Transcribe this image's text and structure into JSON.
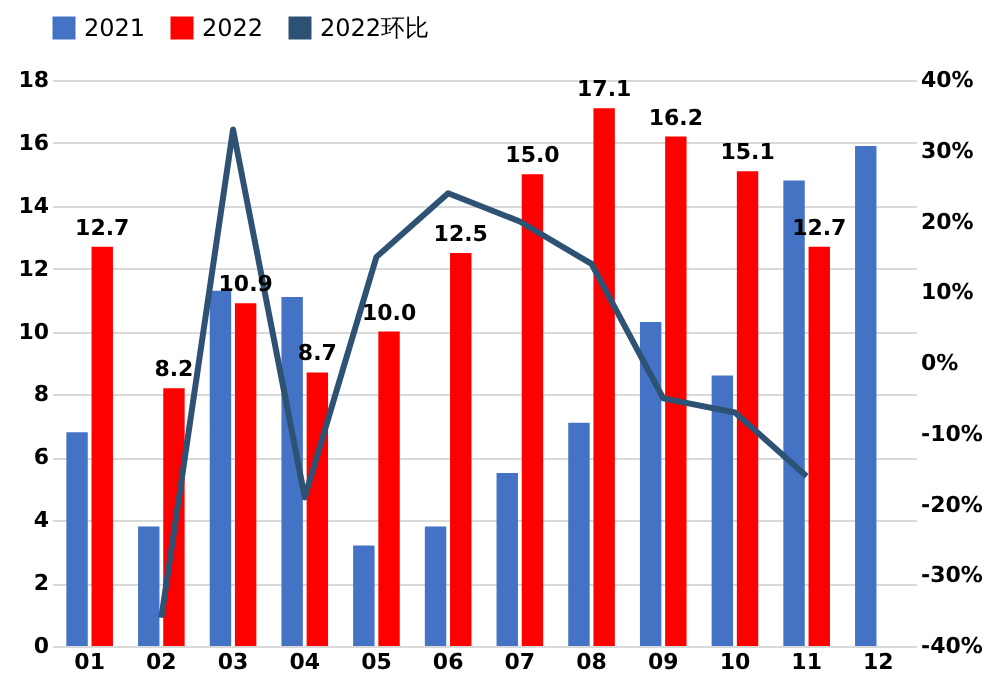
{
  "chart_data": {
    "type": "bar",
    "categories": [
      "01",
      "02",
      "03",
      "04",
      "05",
      "06",
      "07",
      "08",
      "09",
      "10",
      "11",
      "12"
    ],
    "series": [
      {
        "name": "2021",
        "color": "#4472c4",
        "values": [
          6.8,
          3.8,
          11.3,
          11.1,
          3.2,
          3.8,
          5.5,
          7.1,
          10.3,
          8.6,
          14.8,
          15.9
        ]
      },
      {
        "name": "2022",
        "color": "#ff0000",
        "values": [
          12.7,
          8.2,
          10.9,
          8.7,
          10.0,
          12.5,
          15.0,
          17.1,
          16.2,
          15.1,
          12.7,
          null
        ],
        "value_labels": [
          "12.7",
          "8.2",
          "10.9",
          "8.7",
          "10.0",
          "12.5",
          "15.0",
          "17.1",
          "16.2",
          "15.1",
          "12.7",
          null
        ]
      },
      {
        "name": "2022环比",
        "color": "#2e5274",
        "type": "line",
        "axis": "y2",
        "values": [
          null,
          -36,
          33,
          -19,
          15,
          24,
          20,
          14,
          -5,
          -7,
          -16,
          null
        ]
      }
    ],
    "ylim": [
      0,
      18
    ],
    "yticks": [
      0,
      2,
      4,
      6,
      8,
      10,
      12,
      14,
      16,
      18
    ],
    "y2lim": [
      -40,
      40
    ],
    "y2ticks": [
      {
        "value": -40,
        "label": "-40%"
      },
      {
        "value": -30,
        "label": "-30%"
      },
      {
        "value": -20,
        "label": "-20%"
      },
      {
        "value": -10,
        "label": "-10%"
      },
      {
        "value": 0,
        "label": "0%"
      },
      {
        "value": 10,
        "label": "10%"
      },
      {
        "value": 20,
        "label": "20%"
      },
      {
        "value": 30,
        "label": "30%"
      },
      {
        "value": 40,
        "label": "40%"
      }
    ],
    "grid": "y",
    "legend": "top"
  }
}
